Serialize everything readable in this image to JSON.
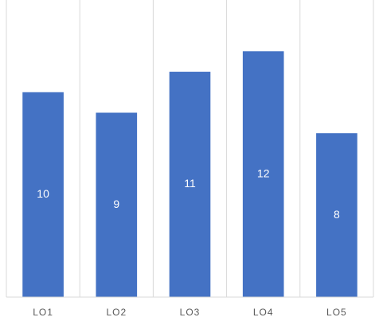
{
  "chart_data": {
    "type": "bar",
    "categories": [
      "LO1",
      "LO2",
      "LO3",
      "LO4",
      "LO5"
    ],
    "values": [
      10,
      9,
      11,
      12,
      8
    ],
    "color": "#4472c4",
    "ylim": [
      0,
      14.5
    ],
    "grid": true
  }
}
